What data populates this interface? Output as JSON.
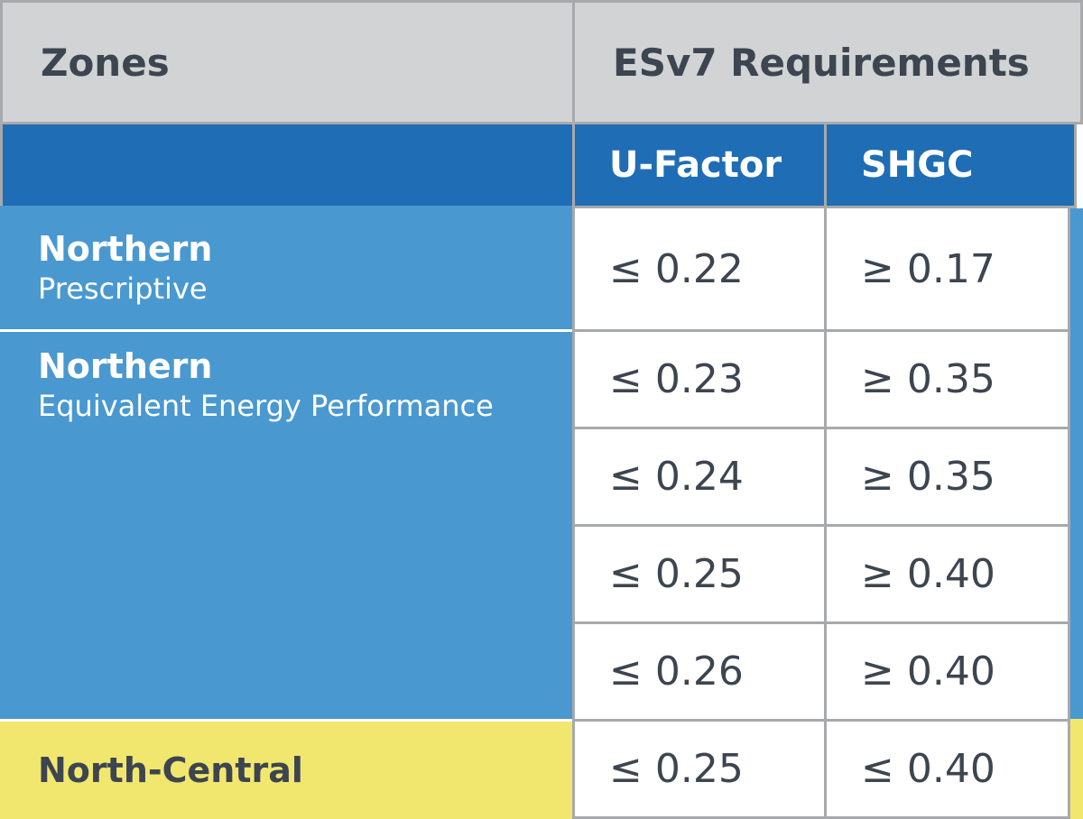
{
  "header": {
    "zones": "Zones",
    "requirements": "ESv7 Requirements"
  },
  "subheader": {
    "u_factor": "U-Factor",
    "shgc": "SHGC"
  },
  "zones": [
    {
      "name": "Northern",
      "subtitle": "Prescriptive",
      "rows": [
        [
          "≤ 0.22",
          "≥ 0.17"
        ]
      ]
    },
    {
      "name": "Northern",
      "subtitle": "Equivalent Energy Performance",
      "rows": [
        [
          "≤ 0.23",
          "≥ 0.35"
        ],
        [
          "≤ 0.24",
          "≥ 0.35"
        ],
        [
          "≤ 0.25",
          "≥ 0.40"
        ],
        [
          "≤ 0.26",
          "≥ 0.40"
        ]
      ]
    },
    {
      "name": "North-Central",
      "rows": [
        [
          "≤ 0.25",
          "≤ 0.40"
        ]
      ]
    }
  ]
}
